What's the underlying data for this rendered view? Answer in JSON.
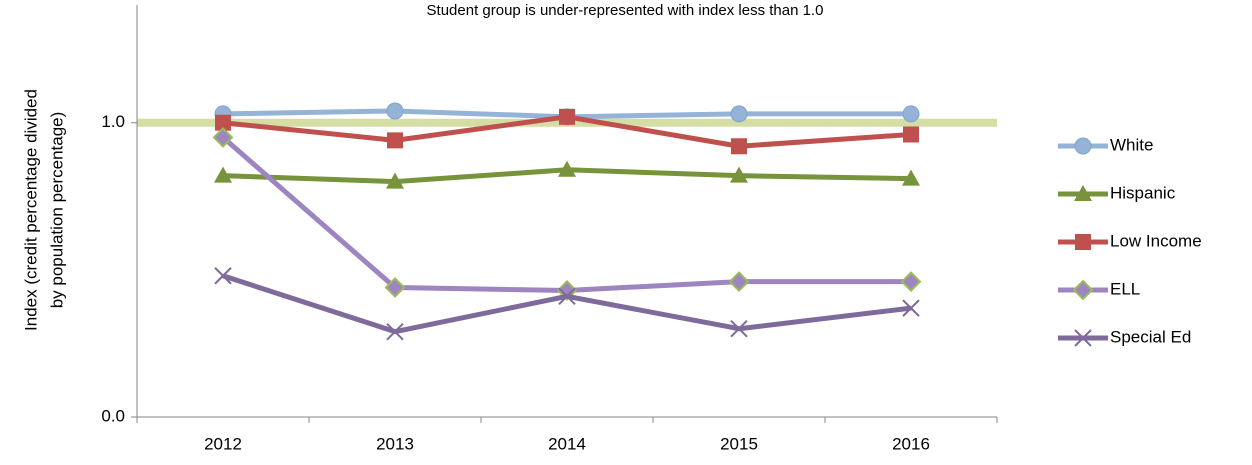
{
  "chart_data": {
    "type": "line",
    "annotation": "Student group is under-represented with index less than 1.0",
    "ylabel": [
      "Index (credit percentage divided",
      "by population percentage)"
    ],
    "categories": [
      "2012",
      "2013",
      "2014",
      "2015",
      "2016"
    ],
    "series": [
      {
        "name": "White",
        "color": "#95b3d7",
        "marker": "circle",
        "values": [
          1.03,
          1.04,
          1.02,
          1.03,
          1.03
        ]
      },
      {
        "name": "Hispanic",
        "color": "#77933c",
        "marker": "triangle",
        "values": [
          0.82,
          0.8,
          0.84,
          0.82,
          0.81
        ]
      },
      {
        "name": "Low Income",
        "color": "#c0504d",
        "marker": "square",
        "values": [
          1.0,
          0.94,
          1.02,
          0.92,
          0.96
        ]
      },
      {
        "name": "ELL",
        "color": "#9c85c0",
        "marker": "diamond",
        "values": [
          0.95,
          0.44,
          0.43,
          0.46,
          0.46
        ]
      },
      {
        "name": "Special Ed",
        "color": "#7f6a9c",
        "marker": "x",
        "values": [
          0.48,
          0.29,
          0.41,
          0.3,
          0.37
        ]
      }
    ],
    "reference_line": {
      "value": 1,
      "color": "#d4dea4"
    },
    "ylim": [
      0,
      1.4
    ],
    "yticks": [
      {
        "value": 0,
        "label": "0.0"
      },
      {
        "value": 1,
        "label": "1.0"
      }
    ],
    "legend": "right"
  }
}
